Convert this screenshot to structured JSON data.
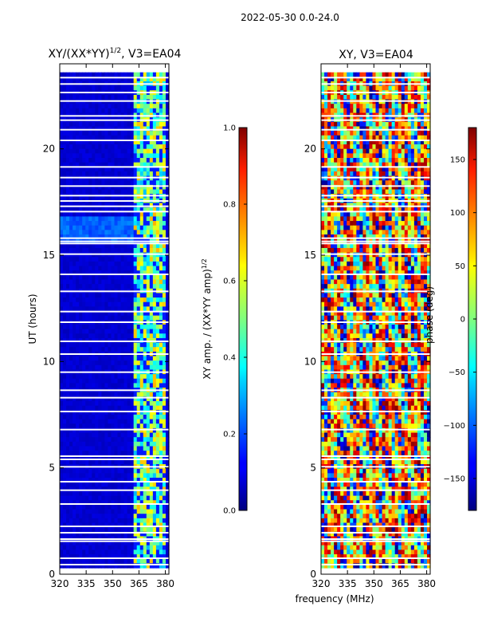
{
  "figure": {
    "suptitle": "2022-05-30 0.0-24.0",
    "shared_xlabel": "frequency (MHz)"
  },
  "chart_data": [
    {
      "type": "heatmap",
      "title_main": "XY/(XX*YY)",
      "title_sup": "1/2",
      "title_tail": ", V3=EA04",
      "ylabel": "UT (hours)",
      "xlabel": "frequency (MHz)",
      "xlim": [
        320,
        382
      ],
      "ylim": [
        0,
        24
      ],
      "xticks": [
        320,
        335,
        350,
        365,
        380
      ],
      "yticks": [
        0,
        5,
        10,
        15,
        20
      ],
      "colormap": "jet",
      "colorbar": {
        "label_main": "XY amp. / (XX*YY amp)",
        "label_sup": "1/2",
        "range": [
          0.0,
          1.0
        ],
        "ticks": [
          "0.0",
          "0.2",
          "0.4",
          "0.6",
          "0.8",
          "1.0"
        ],
        "tick_values": [
          0.0,
          0.2,
          0.4,
          0.6,
          0.8,
          1.0
        ]
      },
      "data_extent_hours": [
        0.3,
        23.6
      ],
      "flagged_hours": [
        0.45,
        0.75,
        1.55,
        1.65,
        1.95,
        2.25,
        3.3,
        3.95,
        4.35,
        5.05,
        5.4,
        5.55,
        6.8,
        7.65,
        8.3,
        8.65,
        9.5,
        10.35,
        10.95,
        11.85,
        12.35,
        13.3,
        14.1,
        15.05,
        15.55,
        15.65,
        15.8,
        17.05,
        17.3,
        17.55,
        17.8,
        18.25,
        18.65,
        19.15,
        20.4,
        20.9,
        21.35,
        21.55,
        22.25,
        22.65,
        23.05,
        23.35
      ],
      "description": "Low amplitude (~0.05) below 360 MHz; amplitude 0.3-0.7 in 362-380 MHz band; elevated ~0.2 across band during 15.6-16.9 UT"
    },
    {
      "type": "heatmap",
      "title": "XY, V3=EA04",
      "xlim": [
        320,
        382
      ],
      "ylim": [
        0,
        24
      ],
      "xticks": [
        320,
        335,
        350,
        365,
        380
      ],
      "yticks": [
        0,
        5,
        10,
        15,
        20
      ],
      "colormap": "jet",
      "colorbar": {
        "label": "phase (deg)",
        "range": [
          -180,
          180
        ],
        "ticks": [
          "150",
          "100",
          "50",
          "0",
          "−50",
          "−100",
          "−150"
        ],
        "tick_values": [
          150,
          100,
          50,
          0,
          -50,
          -100,
          -150
        ]
      },
      "data_extent_hours": [
        0.3,
        23.6
      ],
      "flagged_hours": [
        0.45,
        0.75,
        1.55,
        1.65,
        1.95,
        2.25,
        3.3,
        3.95,
        4.35,
        5.05,
        5.4,
        5.55,
        6.8,
        7.65,
        8.3,
        8.65,
        9.5,
        10.35,
        10.95,
        11.85,
        12.35,
        13.3,
        14.1,
        15.05,
        15.55,
        15.65,
        15.8,
        17.05,
        17.3,
        17.55,
        17.8,
        18.25,
        18.65,
        19.15,
        20.4,
        20.9,
        21.35,
        21.55,
        22.25,
        22.65,
        23.05,
        23.35
      ],
      "description": "Phase varies across full range with vertical banding in frequency; structured wrap patterns near 365-380 MHz between 5-10 UT"
    }
  ]
}
